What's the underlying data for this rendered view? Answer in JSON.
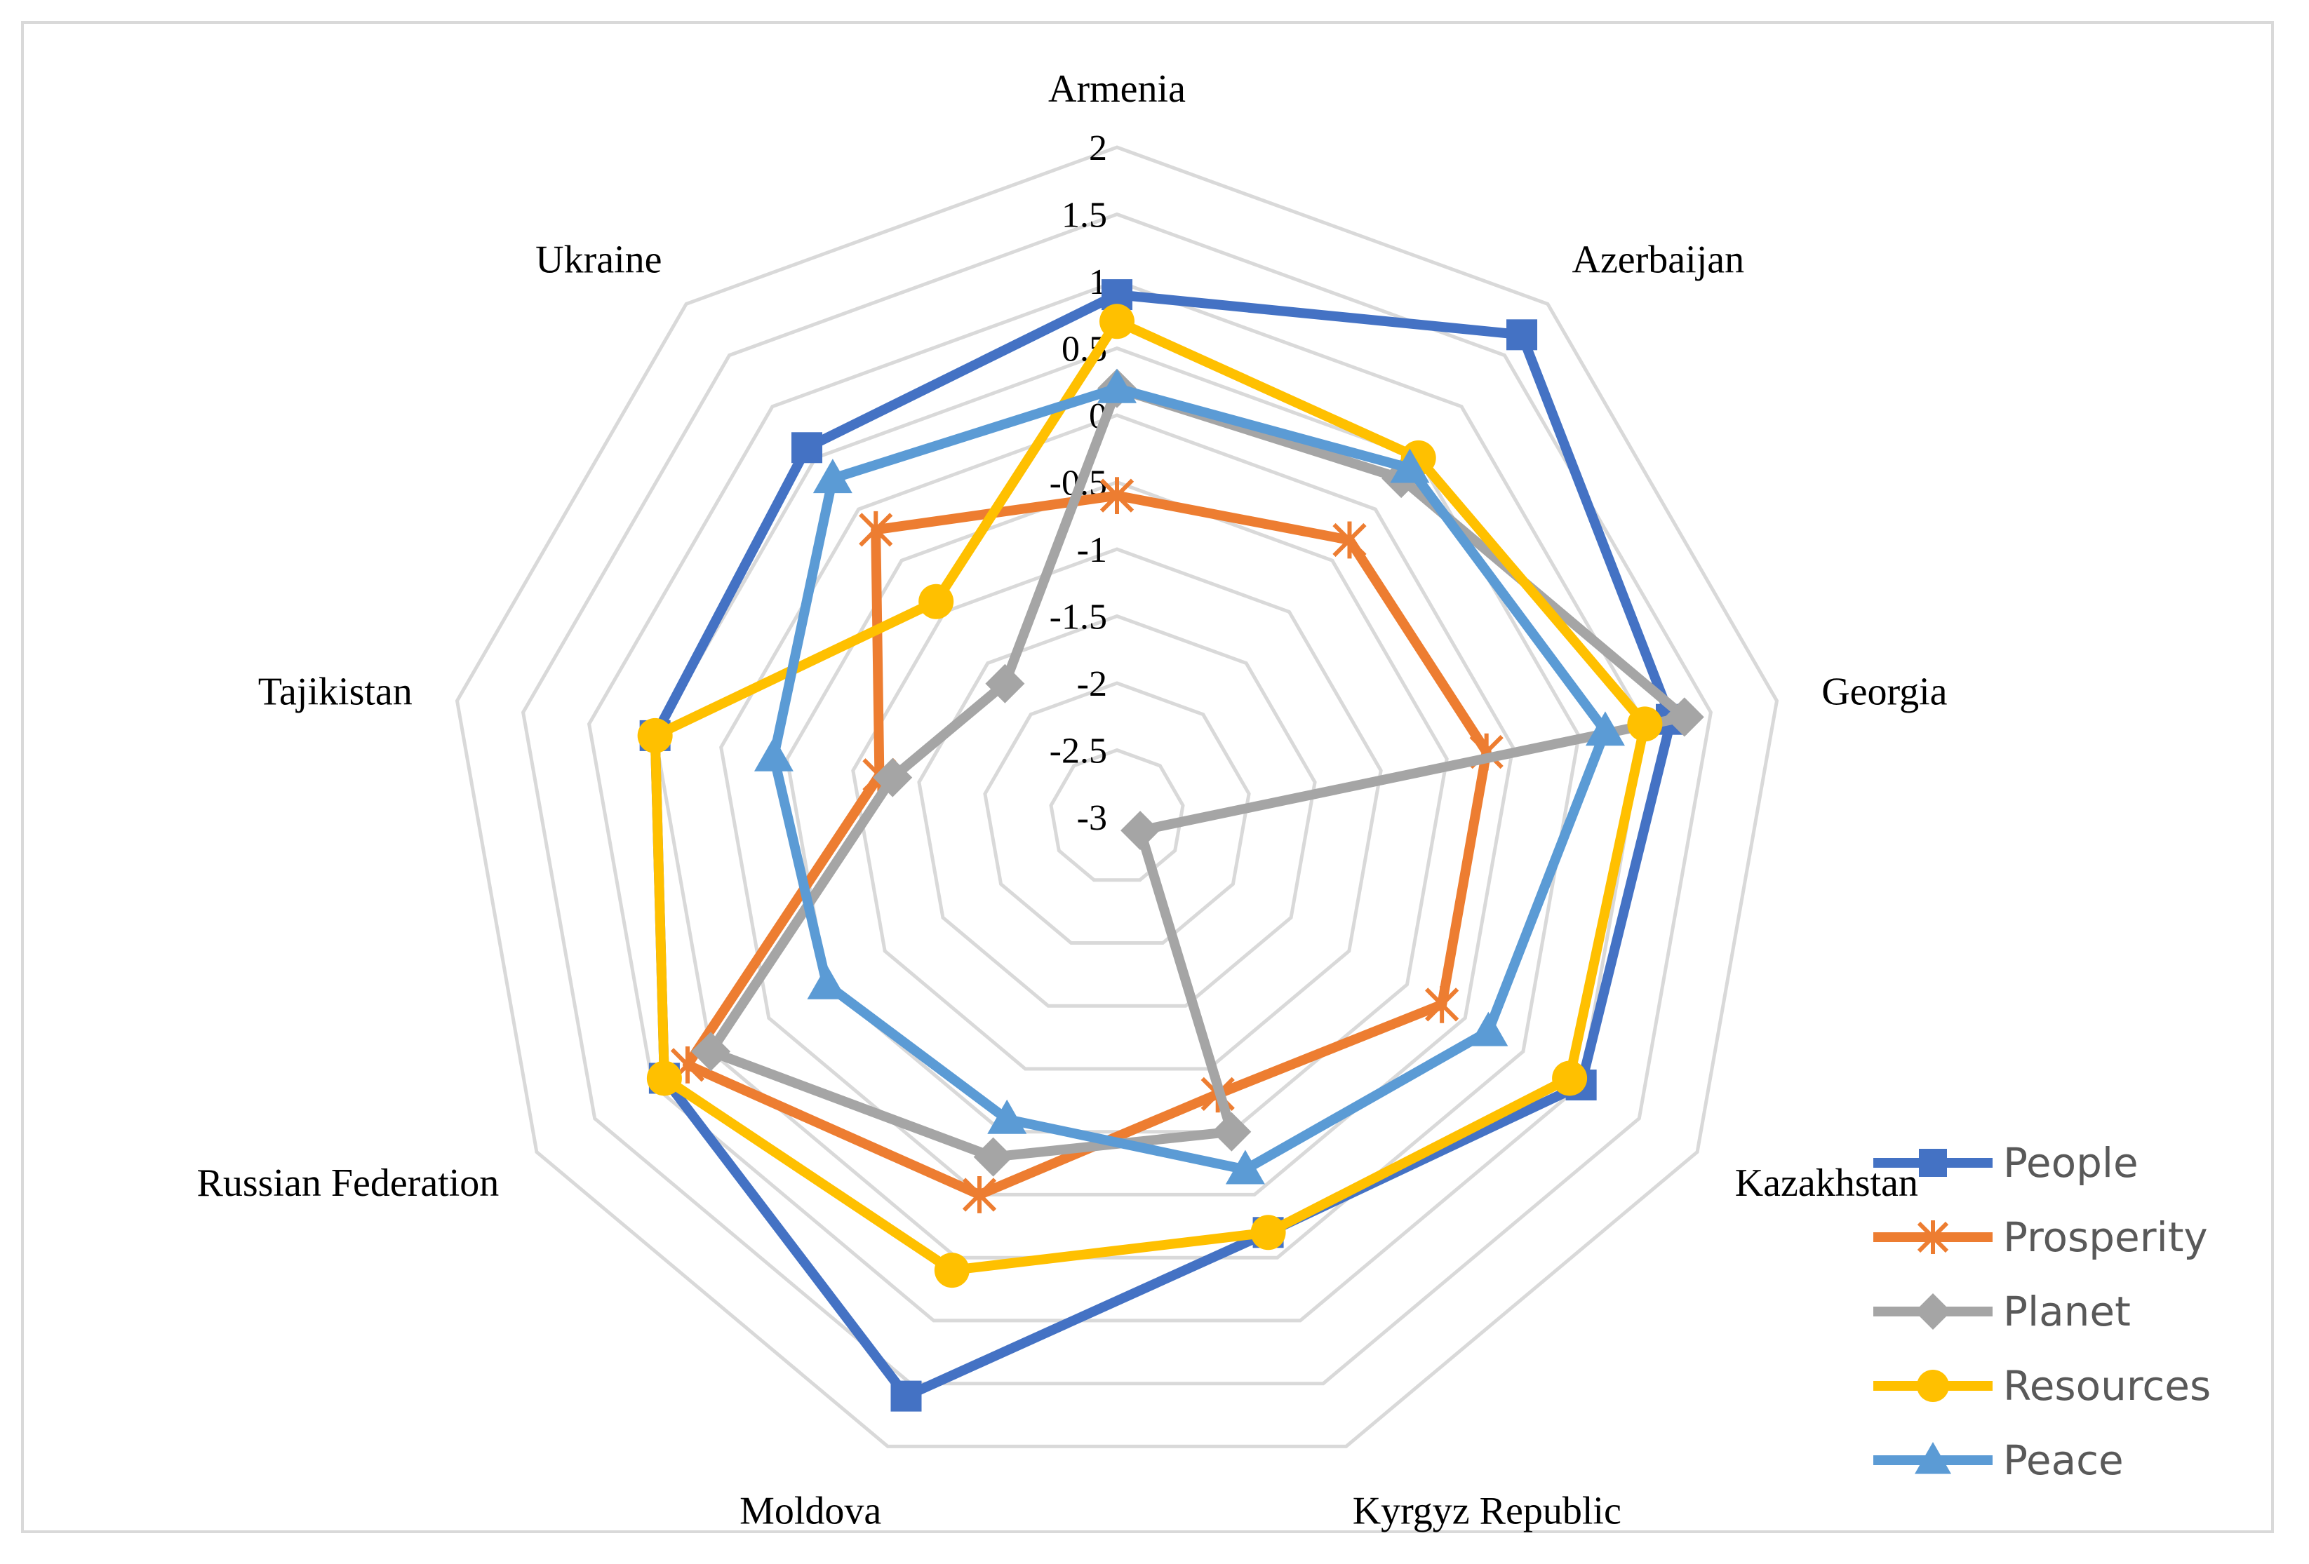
{
  "chart_data": {
    "type": "radar",
    "title": "",
    "categories": [
      "Armenia",
      "Azerbaijan",
      "Georgia",
      "Kazakhstan",
      "Kyrgyz Republic",
      "Moldova",
      "Russian Federation",
      "Tajikistan",
      "Ukraine"
    ],
    "r_range": [
      -3,
      2
    ],
    "ticks": [
      2,
      1.5,
      1,
      0.5,
      0,
      -0.5,
      -1,
      -1.5,
      -2,
      -2.5,
      -3
    ],
    "tick_labels": [
      "2",
      "1.5",
      "1",
      "0.5",
      "0",
      "-0.5",
      "-1",
      "-1.5",
      "-2",
      "-2.5",
      "-3"
    ],
    "legend_position": "bottom-right",
    "series": [
      {
        "name": "People",
        "color": "#4472c4",
        "marker": "square",
        "values": [
          0.9,
          1.7,
          1.2,
          1.0,
          0.3,
          1.6,
          0.9,
          0.5,
          0.6
        ]
      },
      {
        "name": "Prosperity",
        "color": "#ed7d31",
        "marker": "asterisk",
        "values": [
          -0.6,
          -0.3,
          -0.2,
          -0.2,
          -0.8,
          0.0,
          0.7,
          -1.2,
          -0.2
        ]
      },
      {
        "name": "Planet",
        "color": "#a5a5a5",
        "marker": "diamond",
        "values": [
          0.2,
          0.3,
          1.3,
          -2.8,
          -0.5,
          -0.3,
          0.5,
          -1.3,
          -1.7
        ]
      },
      {
        "name": "Resources",
        "color": "#ffc000",
        "marker": "circle",
        "values": [
          0.7,
          0.5,
          1.0,
          0.9,
          0.3,
          0.6,
          0.9,
          0.5,
          -0.9
        ]
      },
      {
        "name": "Peace",
        "color": "#5b9bd5",
        "marker": "triangle",
        "values": [
          0.2,
          0.4,
          0.7,
          0.2,
          -0.2,
          -0.6,
          -0.5,
          -0.4,
          0.3
        ]
      }
    ]
  }
}
